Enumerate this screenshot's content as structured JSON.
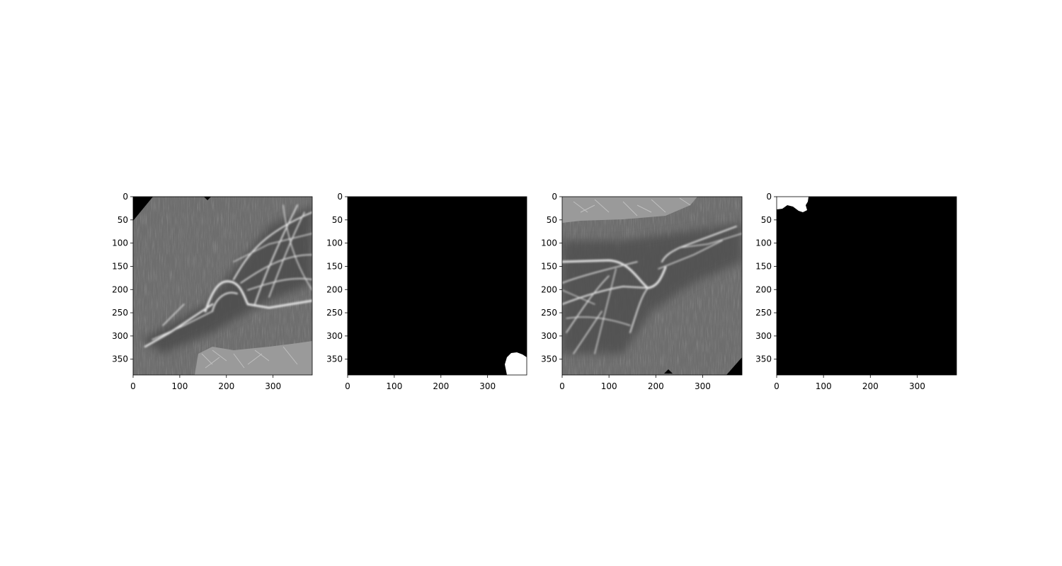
{
  "figure": {
    "panels": [
      {
        "name": "grayscale-image-1",
        "kind": "microscopy image",
        "x_ticks": [
          "0",
          "100",
          "200",
          "300"
        ],
        "y_ticks": [
          "0",
          "50",
          "100",
          "150",
          "200",
          "250",
          "300",
          "350"
        ]
      },
      {
        "name": "segmentation-mask-1",
        "kind": "binary mask",
        "x_ticks": [
          "0",
          "100",
          "200",
          "300"
        ],
        "y_ticks": [
          "0",
          "50",
          "100",
          "150",
          "200",
          "250",
          "300",
          "350"
        ]
      },
      {
        "name": "grayscale-image-2",
        "kind": "microscopy image",
        "x_ticks": [
          "0",
          "100",
          "200",
          "300"
        ],
        "y_ticks": [
          "0",
          "50",
          "100",
          "150",
          "200",
          "250",
          "300",
          "350"
        ]
      },
      {
        "name": "segmentation-mask-2",
        "kind": "binary mask",
        "x_ticks": [
          "0",
          "100",
          "200",
          "300"
        ],
        "y_ticks": [
          "0",
          "50",
          "100",
          "150",
          "200",
          "250",
          "300",
          "350"
        ]
      }
    ],
    "colors": {
      "background": "#ffffff",
      "mask_fill": "#000000",
      "mask_region": "#ffffff",
      "image_base": "#6f6f6f"
    }
  }
}
